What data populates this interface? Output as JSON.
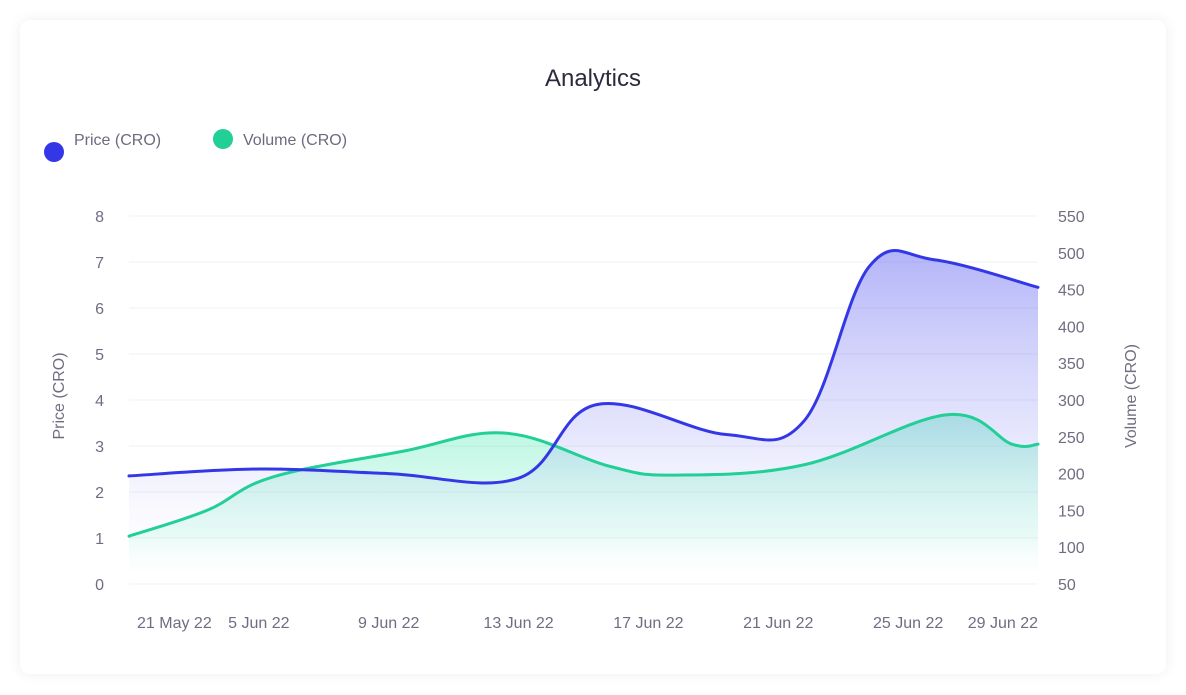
{
  "chart_data": {
    "type": "area",
    "title": "Analytics",
    "categories": [
      "21 May 22",
      "5 Jun 22",
      "9 Jun 22",
      "13 Jun 22",
      "17 Jun 22",
      "21 Jun 22",
      "25 Jun 22",
      "29 Jun 22"
    ],
    "series": [
      {
        "name": "Price (CRO)",
        "axis": "left",
        "color": "#3437e6",
        "x": [
          0,
          1,
          2,
          3,
          3.6,
          4.6,
          5.2,
          5.7,
          6.2,
          7
        ],
        "values": [
          2.35,
          2.5,
          2.4,
          2.3,
          3.9,
          3.25,
          3.55,
          6.9,
          7.05,
          6.45
        ]
      },
      {
        "name": "Volume (CRO)",
        "axis": "right",
        "color": "#21cf97",
        "x": [
          0,
          0.6,
          1.1,
          2.1,
          2.9,
          3.7,
          4.2,
          5.2,
          6.3,
          6.8,
          7
        ],
        "values": [
          115,
          150,
          195,
          230,
          255,
          210,
          198,
          212,
          280,
          240,
          240
        ]
      }
    ],
    "y_left": {
      "label": "Price (CRO)",
      "ticks": [
        "0",
        "1",
        "2",
        "3",
        "4",
        "5",
        "6",
        "7",
        "8"
      ],
      "range": [
        0,
        8
      ]
    },
    "y_right": {
      "label": "Volume (CRO)",
      "ticks": [
        "50",
        "100",
        "150",
        "200",
        "250",
        "300",
        "350",
        "400",
        "450",
        "500",
        "550"
      ],
      "range": [
        50,
        550
      ]
    },
    "legend_placement": "top-left",
    "grid": true
  }
}
